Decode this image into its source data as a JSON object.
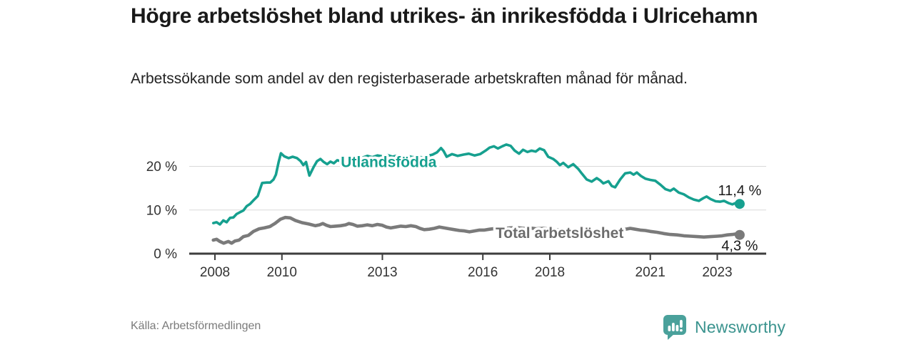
{
  "header": {
    "title": "Högre arbetslöshet bland utrikes- än inrikesfödda i Ulricehamn",
    "subtitle": "Arbetssökande som andel av den registerbaserade arbetskraften månad för månad."
  },
  "footer": {
    "source": "Källa: Arbetsförmedlingen",
    "brand": "Newsworthy"
  },
  "chart_data": {
    "type": "line",
    "title": "Högre arbetslöshet bland utrikes- än inrikesfödda i Ulricehamn",
    "subtitle": "Arbetssökande som andel av den registerbaserade arbetskraften månad för månad.",
    "grid": "horizontal-only",
    "legend_position": "inline-labels",
    "style": {
      "grid_color": "#d9d9d9",
      "axis_color": "#3d3d3d",
      "tick_label_color": "#333333"
    },
    "x_axis": {
      "label": "",
      "range": [
        2007.25,
        2024.4
      ],
      "ticks": [
        2008,
        2010,
        2013,
        2016,
        2018,
        2021,
        2023
      ]
    },
    "y_axis": {
      "label": "",
      "range": [
        0,
        27.9
      ],
      "ticks": [
        {
          "value": 0,
          "label": "0 %"
        },
        {
          "value": 10,
          "label": "10 %"
        },
        {
          "value": 20,
          "label": "20 %"
        }
      ]
    },
    "series": [
      {
        "id": "total",
        "name": "Total arbetslöshet",
        "color": "#7a7a7a",
        "label_color": "#6d6d6d",
        "stroke_width": 4.6,
        "end_label": {
          "text": "4,3 %",
          "position": "below"
        },
        "label_anchor": {
          "x": 2016.38,
          "y": 3.6
        },
        "points": [
          [
            2007.95,
            3.1
          ],
          [
            2008.05,
            3.3
          ],
          [
            2008.15,
            2.8
          ],
          [
            2008.26,
            2.4
          ],
          [
            2008.4,
            2.8
          ],
          [
            2008.5,
            2.4
          ],
          [
            2008.6,
            2.9
          ],
          [
            2008.72,
            3.1
          ],
          [
            2008.85,
            3.9
          ],
          [
            2009.0,
            4.2
          ],
          [
            2009.15,
            5.1
          ],
          [
            2009.32,
            5.7
          ],
          [
            2009.47,
            5.9
          ],
          [
            2009.64,
            6.2
          ],
          [
            2009.79,
            6.9
          ],
          [
            2009.96,
            7.9
          ],
          [
            2010.1,
            8.3
          ],
          [
            2010.25,
            8.2
          ],
          [
            2010.4,
            7.6
          ],
          [
            2010.6,
            7.1
          ],
          [
            2010.8,
            6.8
          ],
          [
            2011.0,
            6.4
          ],
          [
            2011.12,
            6.6
          ],
          [
            2011.22,
            6.9
          ],
          [
            2011.33,
            6.5
          ],
          [
            2011.45,
            6.2
          ],
          [
            2011.6,
            6.3
          ],
          [
            2011.75,
            6.4
          ],
          [
            2011.9,
            6.6
          ],
          [
            2012.0,
            6.9
          ],
          [
            2012.12,
            6.7
          ],
          [
            2012.25,
            6.3
          ],
          [
            2012.4,
            6.4
          ],
          [
            2012.55,
            6.6
          ],
          [
            2012.7,
            6.4
          ],
          [
            2012.85,
            6.7
          ],
          [
            2013.0,
            6.5
          ],
          [
            2013.12,
            6.1
          ],
          [
            2013.25,
            5.9
          ],
          [
            2013.4,
            6.1
          ],
          [
            2013.55,
            6.3
          ],
          [
            2013.7,
            6.2
          ],
          [
            2013.85,
            6.4
          ],
          [
            2014.0,
            6.2
          ],
          [
            2014.12,
            5.8
          ],
          [
            2014.25,
            5.5
          ],
          [
            2014.4,
            5.6
          ],
          [
            2014.55,
            5.8
          ],
          [
            2014.7,
            6.1
          ],
          [
            2014.85,
            5.9
          ],
          [
            2015.0,
            5.7
          ],
          [
            2015.15,
            5.5
          ],
          [
            2015.3,
            5.3
          ],
          [
            2015.45,
            5.2
          ],
          [
            2015.6,
            5.0
          ],
          [
            2015.75,
            5.2
          ],
          [
            2015.9,
            5.4
          ],
          [
            2016.05,
            5.4
          ],
          [
            2016.2,
            5.6
          ],
          [
            2016.4,
            5.8
          ],
          [
            2016.6,
            5.7
          ],
          [
            2016.8,
            5.9
          ],
          [
            2017.0,
            6.0
          ],
          [
            2017.2,
            5.8
          ],
          [
            2017.4,
            5.9
          ],
          [
            2017.6,
            5.7
          ],
          [
            2017.8,
            5.8
          ],
          [
            2018.0,
            5.6
          ],
          [
            2018.2,
            5.5
          ],
          [
            2018.4,
            5.3
          ],
          [
            2018.6,
            5.2
          ],
          [
            2018.8,
            5.1
          ],
          [
            2019.0,
            5.0
          ],
          [
            2019.2,
            4.9
          ],
          [
            2019.4,
            4.9
          ],
          [
            2019.6,
            4.8
          ],
          [
            2019.8,
            4.9
          ],
          [
            2020.0,
            5.1
          ],
          [
            2020.2,
            5.5
          ],
          [
            2020.4,
            5.8
          ],
          [
            2020.55,
            5.6
          ],
          [
            2020.7,
            5.4
          ],
          [
            2020.85,
            5.3
          ],
          [
            2021.0,
            5.1
          ],
          [
            2021.2,
            4.9
          ],
          [
            2021.4,
            4.6
          ],
          [
            2021.6,
            4.4
          ],
          [
            2021.8,
            4.3
          ],
          [
            2022.0,
            4.1
          ],
          [
            2022.2,
            4.0
          ],
          [
            2022.4,
            3.9
          ],
          [
            2022.6,
            3.8
          ],
          [
            2022.8,
            3.9
          ],
          [
            2023.0,
            4.0
          ],
          [
            2023.15,
            4.1
          ],
          [
            2023.3,
            4.3
          ],
          [
            2023.45,
            4.4
          ],
          [
            2023.55,
            4.5
          ],
          [
            2023.67,
            4.3
          ]
        ]
      },
      {
        "id": "utlandsfodda",
        "name": "Utlandsfödda",
        "color": "#16a08f",
        "label_color": "#16a08f",
        "stroke_width": 3.6,
        "end_label": {
          "text": "11,4 %",
          "position": "above"
        },
        "label_anchor": {
          "x": 2011.76,
          "y": 19.8
        },
        "points": [
          [
            2007.95,
            7.0
          ],
          [
            2008.05,
            7.2
          ],
          [
            2008.15,
            6.7
          ],
          [
            2008.25,
            7.6
          ],
          [
            2008.35,
            7.2
          ],
          [
            2008.45,
            8.2
          ],
          [
            2008.55,
            8.3
          ],
          [
            2008.65,
            9.1
          ],
          [
            2008.75,
            9.5
          ],
          [
            2008.85,
            9.9
          ],
          [
            2008.95,
            10.9
          ],
          [
            2009.05,
            11.4
          ],
          [
            2009.15,
            12.2
          ],
          [
            2009.28,
            13.2
          ],
          [
            2009.41,
            16.2
          ],
          [
            2009.55,
            16.3
          ],
          [
            2009.65,
            16.3
          ],
          [
            2009.75,
            17.0
          ],
          [
            2009.82,
            18.1
          ],
          [
            2009.9,
            20.9
          ],
          [
            2009.97,
            23.0
          ],
          [
            2010.07,
            22.3
          ],
          [
            2010.2,
            21.9
          ],
          [
            2010.32,
            22.2
          ],
          [
            2010.45,
            21.9
          ],
          [
            2010.56,
            21.2
          ],
          [
            2010.64,
            20.3
          ],
          [
            2010.72,
            21.0
          ],
          [
            2010.82,
            17.9
          ],
          [
            2010.95,
            19.9
          ],
          [
            2011.05,
            21.2
          ],
          [
            2011.15,
            21.7
          ],
          [
            2011.25,
            21.0
          ],
          [
            2011.35,
            20.5
          ],
          [
            2011.45,
            21.1
          ],
          [
            2011.55,
            20.7
          ],
          [
            2011.65,
            21.4
          ],
          [
            2011.75,
            21.2
          ],
          [
            2011.85,
            21.5
          ],
          [
            2011.95,
            21.8
          ],
          [
            2012.1,
            21.6
          ],
          [
            2012.25,
            22.2
          ],
          [
            2012.4,
            22.0
          ],
          [
            2012.55,
            22.4
          ],
          [
            2012.7,
            22.1
          ],
          [
            2012.85,
            22.5
          ],
          [
            2013.0,
            22.3
          ],
          [
            2013.15,
            22.6
          ],
          [
            2013.3,
            22.2
          ],
          [
            2013.45,
            22.5
          ],
          [
            2013.6,
            22.2
          ],
          [
            2013.75,
            22.4
          ],
          [
            2013.9,
            22.1
          ],
          [
            2014.05,
            22.3
          ],
          [
            2014.2,
            22.0
          ],
          [
            2014.35,
            22.4
          ],
          [
            2014.5,
            22.7
          ],
          [
            2014.63,
            23.2
          ],
          [
            2014.75,
            24.2
          ],
          [
            2014.83,
            23.5
          ],
          [
            2014.92,
            22.2
          ],
          [
            2015.08,
            22.8
          ],
          [
            2015.25,
            22.4
          ],
          [
            2015.42,
            22.7
          ],
          [
            2015.58,
            22.9
          ],
          [
            2015.75,
            22.5
          ],
          [
            2015.92,
            22.8
          ],
          [
            2016.08,
            23.6
          ],
          [
            2016.2,
            24.3
          ],
          [
            2016.33,
            24.6
          ],
          [
            2016.45,
            24.1
          ],
          [
            2016.58,
            24.6
          ],
          [
            2016.7,
            25.0
          ],
          [
            2016.83,
            24.7
          ],
          [
            2016.95,
            23.6
          ],
          [
            2017.08,
            22.9
          ],
          [
            2017.2,
            23.8
          ],
          [
            2017.33,
            23.3
          ],
          [
            2017.45,
            23.6
          ],
          [
            2017.58,
            23.4
          ],
          [
            2017.7,
            24.1
          ],
          [
            2017.83,
            23.7
          ],
          [
            2017.95,
            22.2
          ],
          [
            2018.1,
            21.7
          ],
          [
            2018.2,
            21.1
          ],
          [
            2018.3,
            20.3
          ],
          [
            2018.4,
            20.8
          ],
          [
            2018.55,
            19.8
          ],
          [
            2018.7,
            20.5
          ],
          [
            2018.85,
            19.4
          ],
          [
            2018.95,
            18.4
          ],
          [
            2019.1,
            17.0
          ],
          [
            2019.25,
            16.5
          ],
          [
            2019.4,
            17.3
          ],
          [
            2019.5,
            16.8
          ],
          [
            2019.6,
            16.1
          ],
          [
            2019.75,
            16.6
          ],
          [
            2019.85,
            15.5
          ],
          [
            2019.95,
            15.2
          ],
          [
            2020.1,
            17.0
          ],
          [
            2020.25,
            18.4
          ],
          [
            2020.4,
            18.6
          ],
          [
            2020.5,
            18.1
          ],
          [
            2020.6,
            18.6
          ],
          [
            2020.72,
            17.8
          ],
          [
            2020.85,
            17.2
          ],
          [
            2021.0,
            16.9
          ],
          [
            2021.15,
            16.7
          ],
          [
            2021.3,
            15.8
          ],
          [
            2021.45,
            14.8
          ],
          [
            2021.6,
            14.4
          ],
          [
            2021.7,
            14.9
          ],
          [
            2021.85,
            14.0
          ],
          [
            2022.0,
            13.6
          ],
          [
            2022.15,
            12.9
          ],
          [
            2022.3,
            12.4
          ],
          [
            2022.45,
            12.1
          ],
          [
            2022.58,
            12.7
          ],
          [
            2022.68,
            13.1
          ],
          [
            2022.8,
            12.5
          ],
          [
            2022.95,
            12.0
          ],
          [
            2023.08,
            11.9
          ],
          [
            2023.2,
            12.1
          ],
          [
            2023.33,
            11.6
          ],
          [
            2023.45,
            11.3
          ],
          [
            2023.55,
            11.6
          ],
          [
            2023.67,
            11.4
          ]
        ]
      }
    ]
  }
}
